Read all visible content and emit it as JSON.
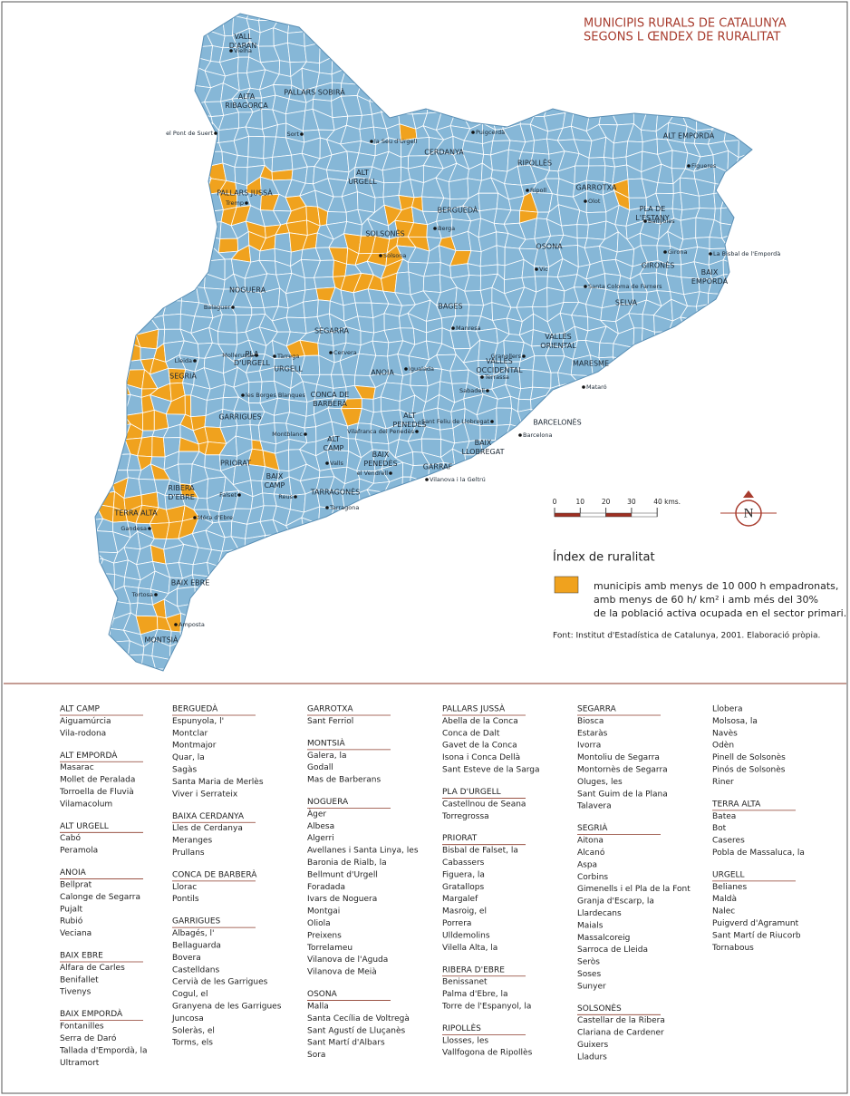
{
  "title": [
    "MUNICIPIS RURALS DE CATALUNYA",
    "SEGONS L ŒNDEX DE RURALITAT"
  ],
  "map": {
    "regions": [
      "VALL D'ARAN",
      "ALTA RIBAGORÇA",
      "PALLARS SOBIRÀ",
      "CERDANYA",
      "ALT URGELL",
      "RIPOLLÈS",
      "ALT EMPORDÀ",
      "PALLARS JUSSÀ",
      "GARROTXA",
      "PLA DE L'ESTANY",
      "BERGUEDÀ",
      "SOLSONÈS",
      "OSONA",
      "GIRONÈS",
      "BAIX EMPORDÀ",
      "NOGUERA",
      "SELVA",
      "BAGES",
      "SEGARRA",
      "PLA D'URGELL",
      "URGELL",
      "VALLÈS ORIENTAL",
      "SEGRIÀ",
      "ANOIA",
      "VALLÈS OCCIDENTAL",
      "MARESME",
      "CONCA DE BARBERÀ",
      "ALT PENEDÈS",
      "BARCELONÈS",
      "GARRIGUES",
      "ALT CAMP",
      "BAIX LLOBREGAT",
      "BAIX PENEDÈS",
      "PRIORAT",
      "GARRAF",
      "BAIX CAMP",
      "RIBERA D'EBRE",
      "TARRAGONÈS",
      "TERRA ALTA",
      "BAIX EBRE",
      "MONTSIÀ"
    ],
    "cities": [
      "Vielha",
      "el Pont de Suert",
      "Sort",
      "la Seu d'Urgell",
      "Puigcerdà",
      "Figueres",
      "Tremp",
      "Ripoll",
      "Olot",
      "Banyoles",
      "Berga",
      "Solsona",
      "Vic",
      "Girona",
      "La Bisbal de l'Empordà",
      "Balaguer",
      "Santa Coloma de Farners",
      "Manresa",
      "Mollerussa",
      "Tàrrega",
      "Cervera",
      "Lleida",
      "Igualada",
      "Granollers",
      "Terrassa",
      "Sabadell",
      "Mataró",
      "les Borges Blanques",
      "Sant Feliu de Llobregat",
      "Montblanc",
      "Vilafranca del Penedès",
      "Barcelona",
      "Valls",
      "el Vendrell",
      "Vilanova i la Geltrú",
      "Falset",
      "Reus",
      "Tarragona",
      "Móra d'Ebre",
      "Gandesa",
      "Tortosa",
      "Amposta"
    ]
  },
  "scale": {
    "ticks": [
      0,
      10,
      20,
      30,
      {
        "value": 40,
        "label": "40 kms."
      }
    ]
  },
  "north": "N",
  "legend": {
    "title": "Índex de ruralitat",
    "color": "#f0a21e",
    "lines": [
      "municipis amb menys de 10 000 h empadronats,",
      "amb menys de 60 h/ km² i amb més del 30%",
      "de la població activa ocupada en el sector primari."
    ]
  },
  "source": "Font: Institut d'Estadística de Catalunya, 2001. Elaboració pròpia.",
  "lists": [
    [
      {
        "heading": "ALT CAMP",
        "items": [
          "Aiguamúrcia",
          "Vila-rodona"
        ]
      },
      {
        "heading": "ALT EMPORDÀ",
        "items": [
          "Masarac",
          "Mollet de Peralada",
          "Torroella de Fluvià",
          "Vilamacolum"
        ]
      },
      {
        "heading": "ALT URGELL",
        "items": [
          "Cabó",
          "Peramola"
        ]
      },
      {
        "heading": "ANOIA",
        "items": [
          "Bellprat",
          "Calonge de Segarra",
          "Pujalt",
          "Rubió",
          "Veciana"
        ]
      },
      {
        "heading": "BAIX EBRE",
        "items": [
          "Alfara de Carles",
          "Benifallet",
          "Tivenys"
        ]
      },
      {
        "heading": "BAIX EMPORDÀ",
        "items": [
          "Fontanilles",
          "Serra de Daró",
          "Tallada d'Empordà, la",
          "Ultramort"
        ]
      }
    ],
    [
      {
        "heading": "BERGUEDÀ",
        "items": [
          "Espunyola, l'",
          "Montclar",
          "Montmajor",
          "Quar, la",
          "Sagàs",
          "Santa Maria de Merlès",
          "Viver i Serrateix"
        ]
      },
      {
        "heading": "BAIXA CERDANYA",
        "items": [
          "Lles de Cerdanya",
          "Meranges",
          "Prullans"
        ]
      },
      {
        "heading": "CONCA DE BARBERÀ",
        "items": [
          "Llorac",
          "Pontils"
        ]
      },
      {
        "heading": "GARRIGUES",
        "items": [
          "Albagés, l'",
          "Bellaguarda",
          "Bovera",
          "Castelldans",
          "Cervià de les Garrigues",
          "Cogul, el",
          "Granyena de les Garrigues",
          "Juncosa",
          "Soleràs, el",
          "Torms, els"
        ]
      }
    ],
    [
      {
        "heading": "GARROTXA",
        "items": [
          "Sant Ferriol"
        ]
      },
      {
        "heading": "MONTSIÀ",
        "items": [
          "Galera, la",
          "Godall",
          "Mas de Barberans"
        ]
      },
      {
        "heading": "NOGUERA",
        "items": [
          "Àger",
          "Albesa",
          "Algerri",
          "Avellanes i Santa Linya, les",
          "Baronia de Rialb, la",
          "Bellmunt d'Urgell",
          "Foradada",
          "Ivars de Noguera",
          "Montgai",
          "Oliola",
          "Preixens",
          "Torrelameu",
          "Vilanova de l'Aguda",
          "Vilanova de Meià"
        ]
      },
      {
        "heading": "OSONA",
        "items": [
          "Malla",
          "Santa Cecília de Voltregà",
          "Sant Agustí de Lluçanès",
          "Sant Martí d'Albars",
          "Sora"
        ]
      }
    ],
    [
      {
        "heading": "PALLARS JUSSÀ",
        "items": [
          "Abella de la Conca",
          "Conca de Dalt",
          "Gavet de la Conca",
          "Isona i Conca Dellà",
          "Sant Esteve de la Sarga"
        ]
      },
      {
        "heading": "PLA D'URGELL",
        "items": [
          "Castellnou de Seana",
          "Torregrossa"
        ]
      },
      {
        "heading": "PRIORAT",
        "items": [
          "Bisbal de Falset, la",
          "Cabassers",
          "Figuera, la",
          "Gratallops",
          "Margalef",
          "Masroig, el",
          "Porrera",
          "Ulldemolins",
          "Vilella Alta, la"
        ]
      },
      {
        "heading": "RIBERA D'EBRE",
        "items": [
          "Benissanet",
          "Palma d'Ebre, la",
          "Torre de l'Espanyol, la"
        ]
      },
      {
        "heading": "RIPOLLÈS",
        "items": [
          "Llosses, les",
          "Vallfogona de Ripollès"
        ]
      }
    ],
    [
      {
        "heading": "SEGARRA",
        "items": [
          "Biosca",
          "Estaràs",
          "Ivorra",
          "Montoliu de Segarra",
          "Montornès de Segarra",
          "Oluges, les",
          "Sant Guim de la Plana",
          "Talavera"
        ]
      },
      {
        "heading": "SEGRIÀ",
        "items": [
          "Aitona",
          "Alcanó",
          "Aspa",
          "Corbins",
          "Gimenells i el Pla de la Font",
          "Granja d'Escarp, la",
          "Llardecans",
          "Maials",
          "Massalcoreig",
          "Sarroca de Lleida",
          "Seròs",
          "Soses",
          "Sunyer"
        ]
      },
      {
        "heading": "SOLSONÈS",
        "items": [
          "Castellar de la Ribera",
          "Clariana de Cardener",
          "Guixers",
          "Lladurs"
        ]
      }
    ],
    [
      {
        "items": [
          "Llobera",
          "Molsosa, la",
          "Navès",
          "Odèn",
          "Pinell de Solsonès",
          "Pinós de Solsonès",
          "Riner"
        ]
      },
      {
        "heading": "TERRA ALTA",
        "items": [
          "Batea",
          "Bot",
          "Caseres",
          "Pobla de Massaluca, la"
        ]
      },
      {
        "heading": "URGELL",
        "items": [
          "Belianes",
          "Maldà",
          "Nalec",
          "Puigverd d'Agramunt",
          "Sant Martí de Riucorb",
          "Tornabous"
        ]
      }
    ]
  ]
}
